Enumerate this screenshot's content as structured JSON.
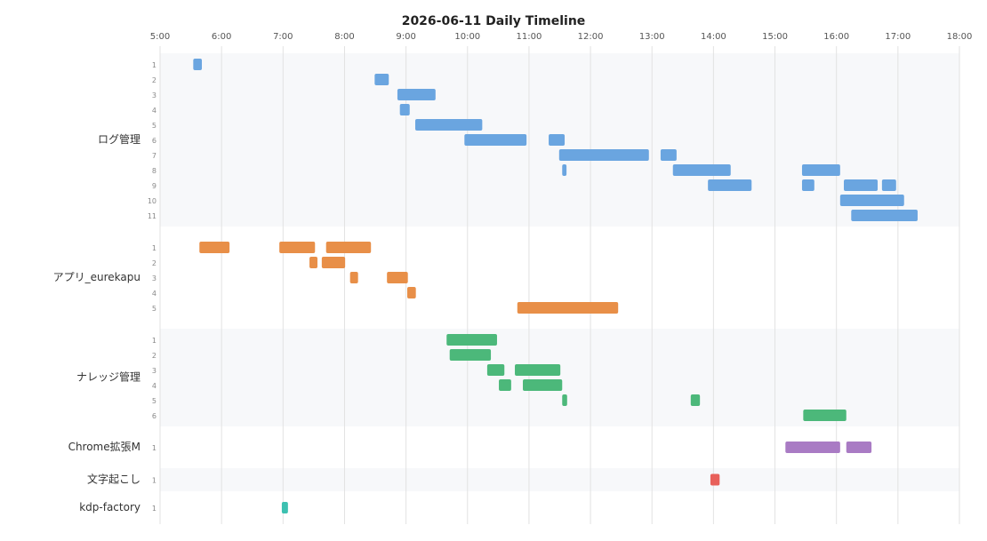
{
  "chart_data": {
    "type": "timeline",
    "title": "2026-06-11 Daily Timeline",
    "xlim": [
      5,
      18
    ],
    "xticks": [
      {
        "value": 5,
        "label": "5:00"
      },
      {
        "value": 6,
        "label": "6:00"
      },
      {
        "value": 7,
        "label": "7:00"
      },
      {
        "value": 8,
        "label": "8:00"
      },
      {
        "value": 9,
        "label": "9:00"
      },
      {
        "value": 10,
        "label": "10:00"
      },
      {
        "value": 11,
        "label": "11:00"
      },
      {
        "value": 12,
        "label": "12:00"
      },
      {
        "value": 13,
        "label": "13:00"
      },
      {
        "value": 14,
        "label": "14:00"
      },
      {
        "value": 15,
        "label": "15:00"
      },
      {
        "value": 16,
        "label": "16:00"
      },
      {
        "value": 17,
        "label": "17:00"
      },
      {
        "value": 18,
        "label": "18:00"
      }
    ],
    "grid": true,
    "groups": [
      {
        "name": "ログ管理",
        "color": "#6aa5e0",
        "lanes": [
          {
            "label": "1",
            "bars": [
              [
                5.54,
                5.68
              ]
            ]
          },
          {
            "label": "2",
            "bars": [
              [
                8.49,
                8.72
              ]
            ]
          },
          {
            "label": "3",
            "bars": [
              [
                8.86,
                9.48
              ]
            ]
          },
          {
            "label": "4",
            "bars": [
              [
                8.9,
                9.06
              ]
            ]
          },
          {
            "label": "5",
            "bars": [
              [
                9.15,
                10.24
              ]
            ]
          },
          {
            "label": "6",
            "bars": [
              [
                9.95,
                10.96
              ],
              [
                11.32,
                11.58
              ]
            ]
          },
          {
            "label": "7",
            "bars": [
              [
                11.49,
                12.95
              ],
              [
                13.14,
                13.4
              ]
            ]
          },
          {
            "label": "8",
            "bars": [
              [
                11.54,
                11.61
              ],
              [
                13.34,
                14.28
              ],
              [
                15.44,
                16.06
              ]
            ]
          },
          {
            "label": "9",
            "bars": [
              [
                13.91,
                14.62
              ],
              [
                15.44,
                15.64
              ],
              [
                16.12,
                16.67
              ],
              [
                16.74,
                16.97
              ]
            ]
          },
          {
            "label": "10",
            "bars": [
              [
                16.06,
                17.1
              ]
            ]
          },
          {
            "label": "11",
            "bars": [
              [
                16.24,
                17.32
              ]
            ]
          }
        ]
      },
      {
        "name": "アプリ_eurekapu",
        "color": "#e88f48",
        "lanes": [
          {
            "label": "1",
            "bars": [
              [
                5.64,
                6.13
              ],
              [
                6.94,
                7.52
              ],
              [
                7.7,
                8.43
              ]
            ]
          },
          {
            "label": "2",
            "bars": [
              [
                7.43,
                7.56
              ],
              [
                7.63,
                8.01
              ]
            ]
          },
          {
            "label": "3",
            "bars": [
              [
                8.09,
                8.22
              ],
              [
                8.69,
                9.03
              ]
            ]
          },
          {
            "label": "4",
            "bars": [
              [
                9.02,
                9.16
              ]
            ]
          },
          {
            "label": "5",
            "bars": [
              [
                10.81,
                12.45
              ]
            ]
          }
        ]
      },
      {
        "name": "ナレッジ管理",
        "color": "#4cb87a",
        "lanes": [
          {
            "label": "1",
            "bars": [
              [
                9.66,
                10.48
              ]
            ]
          },
          {
            "label": "2",
            "bars": [
              [
                9.71,
                10.38
              ]
            ]
          },
          {
            "label": "3",
            "bars": [
              [
                10.32,
                10.6
              ],
              [
                10.77,
                11.51
              ]
            ]
          },
          {
            "label": "4",
            "bars": [
              [
                10.51,
                10.71
              ],
              [
                10.9,
                11.54
              ]
            ]
          },
          {
            "label": "5",
            "bars": [
              [
                11.54,
                11.62
              ],
              [
                13.63,
                13.78
              ]
            ]
          },
          {
            "label": "6",
            "bars": [
              [
                15.46,
                16.16
              ]
            ]
          }
        ]
      },
      {
        "name": "Chrome拡張M",
        "color": "#a97bc4",
        "lanes": [
          {
            "label": "1",
            "bars": [
              [
                15.17,
                16.06
              ],
              [
                16.16,
                16.57
              ]
            ]
          }
        ]
      },
      {
        "name": "文字起こし",
        "color": "#e8605a",
        "lanes": [
          {
            "label": "1",
            "bars": [
              [
                13.95,
                14.1
              ]
            ]
          }
        ]
      },
      {
        "name": "kdp-factory",
        "color": "#3cc0b0",
        "lanes": [
          {
            "label": "1",
            "bars": [
              [
                6.98,
                7.08
              ]
            ]
          }
        ]
      }
    ]
  }
}
